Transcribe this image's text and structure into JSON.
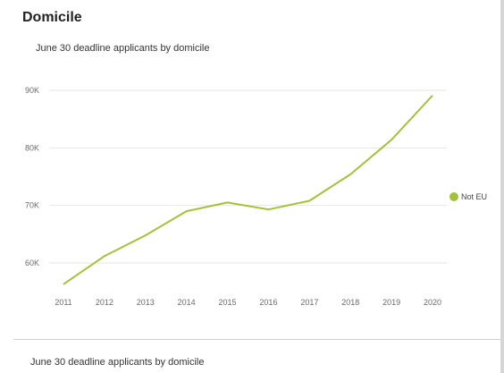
{
  "section": {
    "title": "Domicile"
  },
  "chart_data": {
    "type": "line",
    "title": "June 30 deadline applicants by domicile",
    "xlabel": "",
    "ylabel": "",
    "categories": [
      "2011",
      "2012",
      "2013",
      "2014",
      "2015",
      "2016",
      "2017",
      "2018",
      "2019",
      "2020"
    ],
    "series": [
      {
        "name": "Not EU",
        "color": "#a3c23a",
        "values": [
          56300,
          61200,
          64800,
          69000,
          70500,
          69300,
          70800,
          75400,
          81400,
          89100
        ]
      }
    ],
    "ylim": [
      55000,
      90000
    ],
    "yticks": [
      {
        "value": 60000,
        "label": "60K"
      },
      {
        "value": 70000,
        "label": "70K"
      },
      {
        "value": 80000,
        "label": "80K"
      },
      {
        "value": 90000,
        "label": "90K"
      }
    ],
    "grid": true,
    "legend_position": "right"
  },
  "next_chart": {
    "title": "June 30 deadline applicants by domicile"
  }
}
